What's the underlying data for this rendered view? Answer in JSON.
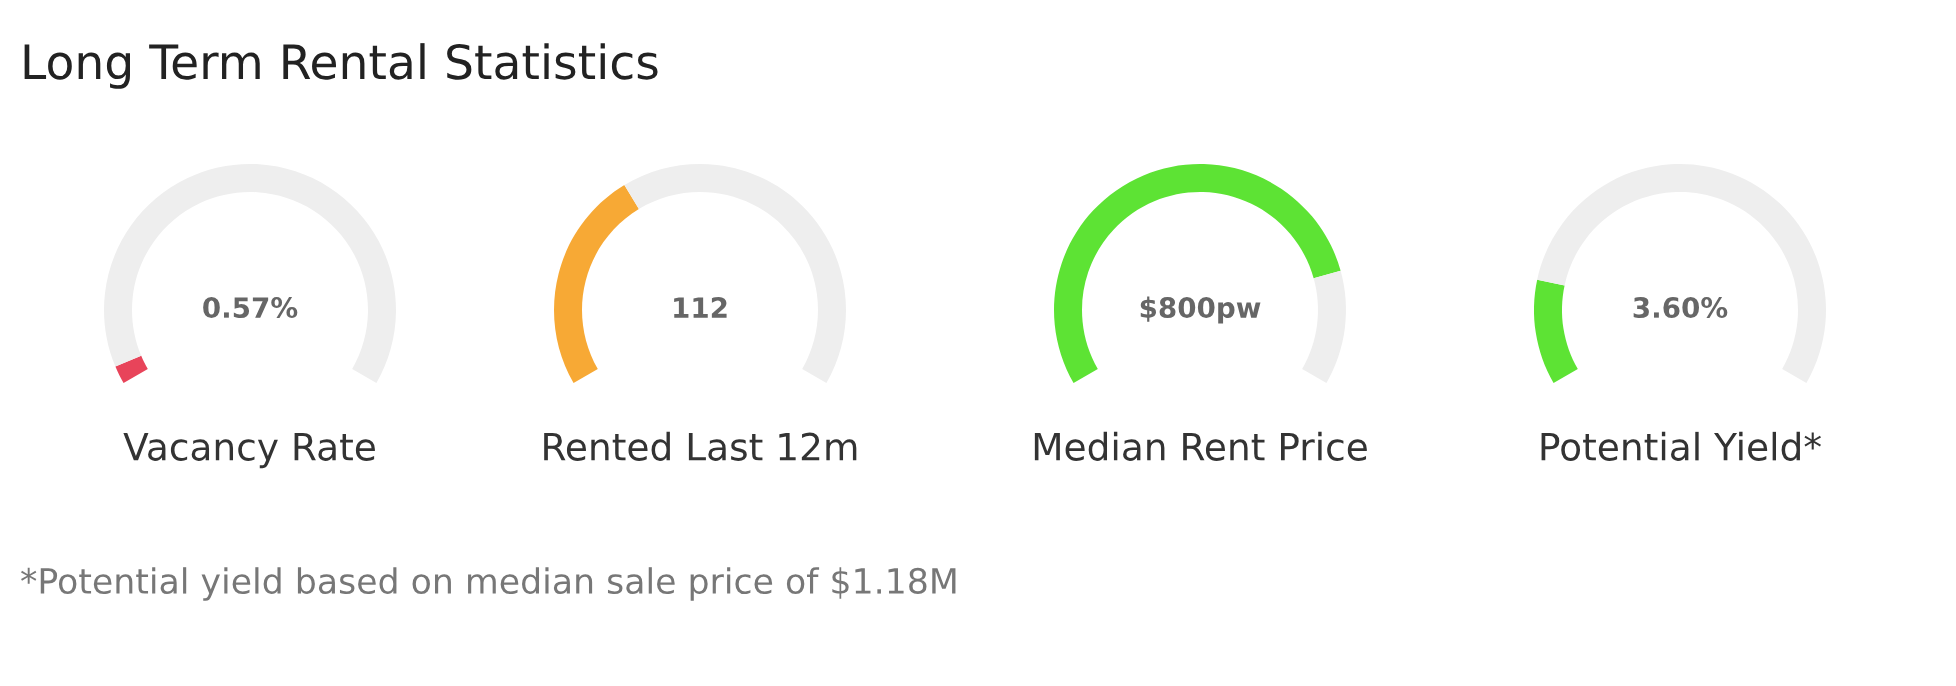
{
  "chart_data": [
    {
      "type": "other",
      "title": "Long Term Rental Statistics",
      "annotations": [
        "*Potential yield based on median sale price of $1.18M"
      ]
    },
    {
      "type": "donut",
      "title": "Vacancy Rate",
      "annotations": [
        "0.57%"
      ],
      "categories": [
        null,
        null
      ],
      "values": [
        3,
        97
      ],
      "colors": [
        "#e8445a",
        "#eeeeee"
      ]
    },
    {
      "type": "donut",
      "title": "Rented Last 12m",
      "annotations": [
        "112"
      ],
      "categories": [
        null,
        null
      ],
      "values": [
        37,
        63
      ],
      "colors": [
        "#f7a935",
        "#eeeeee"
      ]
    },
    {
      "type": "donut",
      "title": "Median Rent Price",
      "annotations": [
        "$800pw"
      ],
      "categories": [
        null,
        null
      ],
      "values": [
        81,
        19
      ],
      "colors": [
        "#5de334",
        "#eeeeee"
      ]
    },
    {
      "type": "donut",
      "title": "Potential Yield*",
      "annotations": [
        "3.60%"
      ],
      "categories": [
        null,
        null
      ],
      "values": [
        17.5,
        82.5
      ],
      "colors": [
        "#5de334",
        "#eeeeee"
      ]
    }
  ]
}
